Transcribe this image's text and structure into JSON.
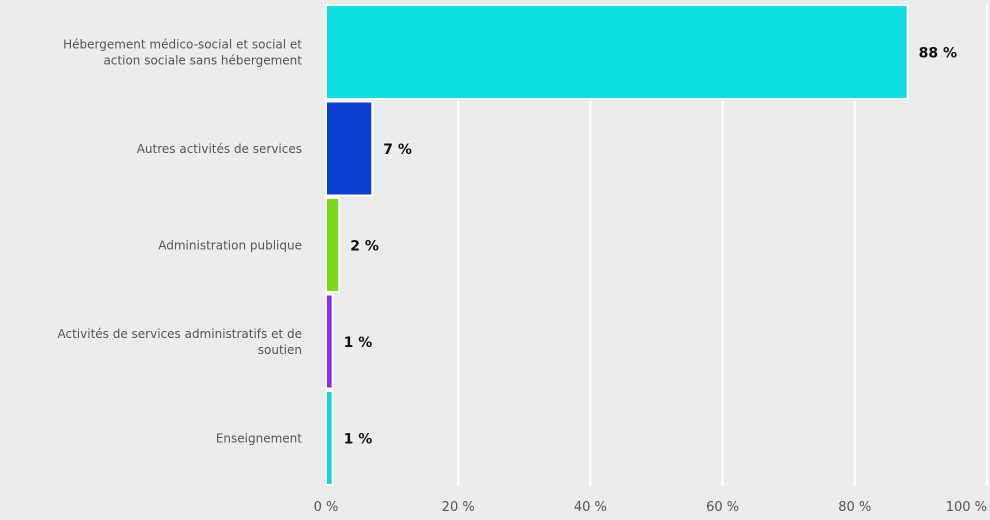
{
  "chart_data": {
    "type": "bar",
    "orientation": "horizontal",
    "title": "",
    "xlabel": "",
    "ylabel": "",
    "xlim": [
      0,
      100
    ],
    "grid": true,
    "legend": "none",
    "categories": [
      [
        "Hébergement médico-social et social et",
        "action sociale sans hébergement"
      ],
      [
        "Autres activités de services"
      ],
      [
        "Administration publique"
      ],
      [
        "Activités de services administratifs et de",
        "soutien"
      ],
      [
        "Enseignement"
      ]
    ],
    "values": [
      88,
      7,
      2,
      1,
      1
    ],
    "value_labels": [
      "88 %",
      "7 %",
      "2 %",
      "1 %",
      "1 %"
    ],
    "colors": [
      "#0ddfe0",
      "#0a3fd6",
      "#7dd81a",
      "#8b2cf5",
      "#10d8df"
    ],
    "ticks": [
      0,
      20,
      40,
      60,
      80,
      100
    ],
    "tick_labels": [
      "0 %",
      "20 %",
      "40 %",
      "60 %",
      "80 %",
      "100 %"
    ]
  }
}
